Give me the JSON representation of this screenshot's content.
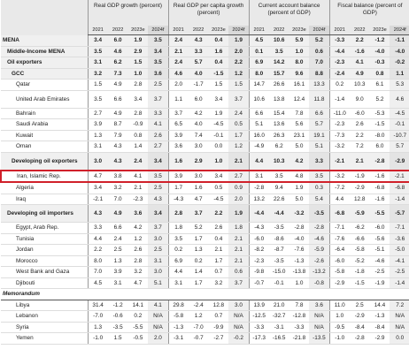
{
  "header": {
    "groups": [
      "Real GDP growth (percent)",
      "Real GDP per capita growth (percent)",
      "Current account balance (percent of GDP)",
      "Fiscal balance (percent of GDP)"
    ],
    "years": [
      "2021",
      "2022",
      "2023e",
      "2024f"
    ]
  },
  "rows": [
    {
      "label": "MENA",
      "values": [
        "3.4",
        "6.0",
        "1.9",
        "3.5",
        "2.4",
        "4.3",
        "0.4",
        "1.9",
        "4.5",
        "10.6",
        "5.9",
        "5.2",
        "-3.3",
        "2.2",
        "-1.2",
        "-1.1"
      ]
    },
    {
      "label": "Middle-Income MENA",
      "values": [
        "3.5",
        "4.6",
        "2.9",
        "3.4",
        "2.1",
        "3.3",
        "1.6",
        "2.0",
        "0.1",
        "3.5",
        "1.0",
        "0.6",
        "-4.4",
        "-1.6",
        "-4.0",
        "-4.0"
      ]
    },
    {
      "label": "Oil exporters",
      "values": [
        "3.1",
        "6.2",
        "1.5",
        "3.5",
        "2.4",
        "5.7",
        "0.4",
        "2.2",
        "6.9",
        "14.2",
        "8.0",
        "7.0",
        "-2.3",
        "4.1",
        "-0.3",
        "-0.2"
      ]
    },
    {
      "label": "GCC",
      "values": [
        "3.2",
        "7.3",
        "1.0",
        "3.6",
        "4.6",
        "4.0",
        "-1.5",
        "1.2",
        "8.0",
        "15.7",
        "9.6",
        "8.8",
        "-2.4",
        "4.9",
        "0.8",
        "1.1"
      ]
    },
    {
      "label": "Qatar",
      "values": [
        "1.5",
        "4.9",
        "2.8",
        "2.5",
        "2.0",
        "-1.7",
        "1.5",
        "1.5",
        "14.7",
        "26.6",
        "16.1",
        "13.3",
        "0.2",
        "10.3",
        "6.1",
        "5.3"
      ]
    },
    {
      "label": "United Arab Emirates",
      "values": [
        "3.5",
        "6.6",
        "3.4",
        "3.7",
        "1.1",
        "6.0",
        "3.4",
        "3.7",
        "10.6",
        "13.8",
        "12.4",
        "11.8",
        "-1.4",
        "9.0",
        "5.2",
        "4.6"
      ]
    },
    {
      "label": "Bahrain",
      "values": [
        "2.7",
        "4.9",
        "2.8",
        "3.3",
        "3.7",
        "4.2",
        "1.9",
        "2.4",
        "6.6",
        "15.4",
        "7.8",
        "6.6",
        "-11.0",
        "-6.0",
        "-5.3",
        "-4.5"
      ]
    },
    {
      "label": "Saudi Arabia",
      "values": [
        "3.9",
        "8.7",
        "-0.9",
        "4.1",
        "6.5",
        "4.0",
        "-4.5",
        "0.5",
        "5.1",
        "13.6",
        "5.6",
        "5.7",
        "-2.3",
        "2.6",
        "-1.5",
        "-0.1"
      ]
    },
    {
      "label": "Kuwait",
      "values": [
        "1.3",
        "7.9",
        "0.8",
        "2.6",
        "3.9",
        "7.4",
        "-0.1",
        "1.7",
        "16.0",
        "26.3",
        "23.1",
        "19.1",
        "-7.3",
        "2.2",
        "-8.0",
        "-10.7"
      ]
    },
    {
      "label": "Oman",
      "values": [
        "3.1",
        "4.3",
        "1.4",
        "2.7",
        "3.6",
        "3.0",
        "0.0",
        "1.2",
        "-4.9",
        "6.2",
        "5.0",
        "5.1",
        "-3.2",
        "7.2",
        "6.0",
        "5.7"
      ]
    },
    {
      "label": "Developing oil exporters",
      "values": [
        "3.0",
        "4.3",
        "2.4",
        "3.4",
        "1.6",
        "2.9",
        "1.0",
        "2.1",
        "4.4",
        "10.3",
        "4.2",
        "3.3",
        "-2.1",
        "2.1",
        "-2.8",
        "-2.9"
      ]
    },
    {
      "label": "Iran, Islamic Rep.",
      "values": [
        "4.7",
        "3.8",
        "4.1",
        "3.5",
        "3.9",
        "3.0",
        "3.4",
        "2.7",
        "3.1",
        "3.5",
        "4.8",
        "3.5",
        "-3.2",
        "-1.9",
        "-1.6",
        "-2.1"
      ]
    },
    {
      "label": "Algeria",
      "values": [
        "3.4",
        "3.2",
        "2.1",
        "2.5",
        "1.7",
        "1.6",
        "0.5",
        "0.9",
        "-2.8",
        "9.4",
        "1.9",
        "0.3",
        "-7.2",
        "-2.9",
        "-6.8",
        "-6.8"
      ]
    },
    {
      "label": "Iraq",
      "values": [
        "-2.1",
        "7.0",
        "-2.3",
        "4.3",
        "-4.3",
        "4.7",
        "-4.5",
        "2.0",
        "13.2",
        "22.6",
        "5.0",
        "5.4",
        "4.4",
        "12.8",
        "-1.6",
        "-1.4"
      ]
    },
    {
      "label": "Developing oil importers",
      "values": [
        "4.3",
        "4.9",
        "3.6",
        "3.4",
        "2.8",
        "3.7",
        "2.2",
        "1.9",
        "-4.4",
        "-4.4",
        "-3.2",
        "-3.5",
        "-6.8",
        "-5.9",
        "-5.5",
        "-5.7"
      ]
    },
    {
      "label": "Egypt, Arab Rep.",
      "values": [
        "3.3",
        "6.6",
        "4.2",
        "3.7",
        "1.8",
        "5.2",
        "2.6",
        "1.8",
        "-4.3",
        "-3.5",
        "-2.8",
        "-2.8",
        "-7.1",
        "-6.2",
        "-6.0",
        "-7.1"
      ]
    },
    {
      "label": "Tunisia",
      "values": [
        "4.4",
        "2.4",
        "1.2",
        "3.0",
        "3.5",
        "1.7",
        "0.4",
        "2.1",
        "-6.0",
        "-8.6",
        "-4.0",
        "-4.6",
        "-7.6",
        "-6.6",
        "-5.6",
        "-3.6"
      ]
    },
    {
      "label": "Jordan",
      "values": [
        "2.2",
        "2.5",
        "2.6",
        "2.5",
        "0.2",
        "1.3",
        "2.1",
        "2.1",
        "-8.2",
        "-8.7",
        "-7.6",
        "-5.9",
        "-6.4",
        "-5.8",
        "-5.1",
        "-5.0"
      ]
    },
    {
      "label": "Morocco",
      "values": [
        "8.0",
        "1.3",
        "2.8",
        "3.1",
        "6.9",
        "0.2",
        "1.7",
        "2.1",
        "-2.3",
        "-3.5",
        "-1.3",
        "-2.6",
        "-6.0",
        "-5.2",
        "-4.6",
        "-4.1"
      ]
    },
    {
      "label": "West Bank and Gaza",
      "values": [
        "7.0",
        "3.9",
        "3.2",
        "3.0",
        "4.4",
        "1.4",
        "0.7",
        "0.6",
        "-9.8",
        "-15.0",
        "-13.8",
        "-13.2",
        "-5.8",
        "-1.8",
        "-2.5",
        "-2.5"
      ]
    },
    {
      "label": "Djibouti",
      "values": [
        "4.5",
        "3.1",
        "4.7",
        "5.1",
        "3.1",
        "1.7",
        "3.2",
        "3.7",
        "-0.7",
        "-0.1",
        "1.0",
        "-0.8",
        "-2.9",
        "-1.5",
        "-1.9",
        "-1.4"
      ]
    },
    {
      "label": "Memorandum"
    },
    {
      "label": "Libya",
      "values": [
        "31.4",
        "-1.2",
        "14.1",
        "4.1",
        "29.8",
        "-2.4",
        "12.8",
        "3.0",
        "13.9",
        "21.0",
        "7.8",
        "3.6",
        "11.0",
        "2.5",
        "14.4",
        "7.2"
      ]
    },
    {
      "label": "Lebanon",
      "values": [
        "-7.0",
        "-0.6",
        "0.2",
        "N/A",
        "-5.8",
        "1.2",
        "0.7",
        "N/A",
        "-12.5",
        "-32.7",
        "-12.8",
        "N/A",
        "1.0",
        "-2.9",
        "-1.3",
        "N/A"
      ]
    },
    {
      "label": "Syria",
      "values": [
        "1.3",
        "-3.5",
        "-5.5",
        "N/A",
        "-1.3",
        "-7.0",
        "-9.9",
        "N/A",
        "-3.3",
        "-3.1",
        "-3.3",
        "N/A",
        "-9.5",
        "-8.4",
        "-8.4",
        "N/A"
      ]
    },
    {
      "label": "Yemen",
      "values": [
        "-1.0",
        "1.5",
        "-0.5",
        "2.0",
        "-3.1",
        "-0.7",
        "-2.7",
        "-0.2",
        "-17.3",
        "-16.5",
        "-21.8",
        "-13.5",
        "-1.0",
        "-2.8",
        "-2.9",
        "0.0"
      ]
    }
  ]
}
